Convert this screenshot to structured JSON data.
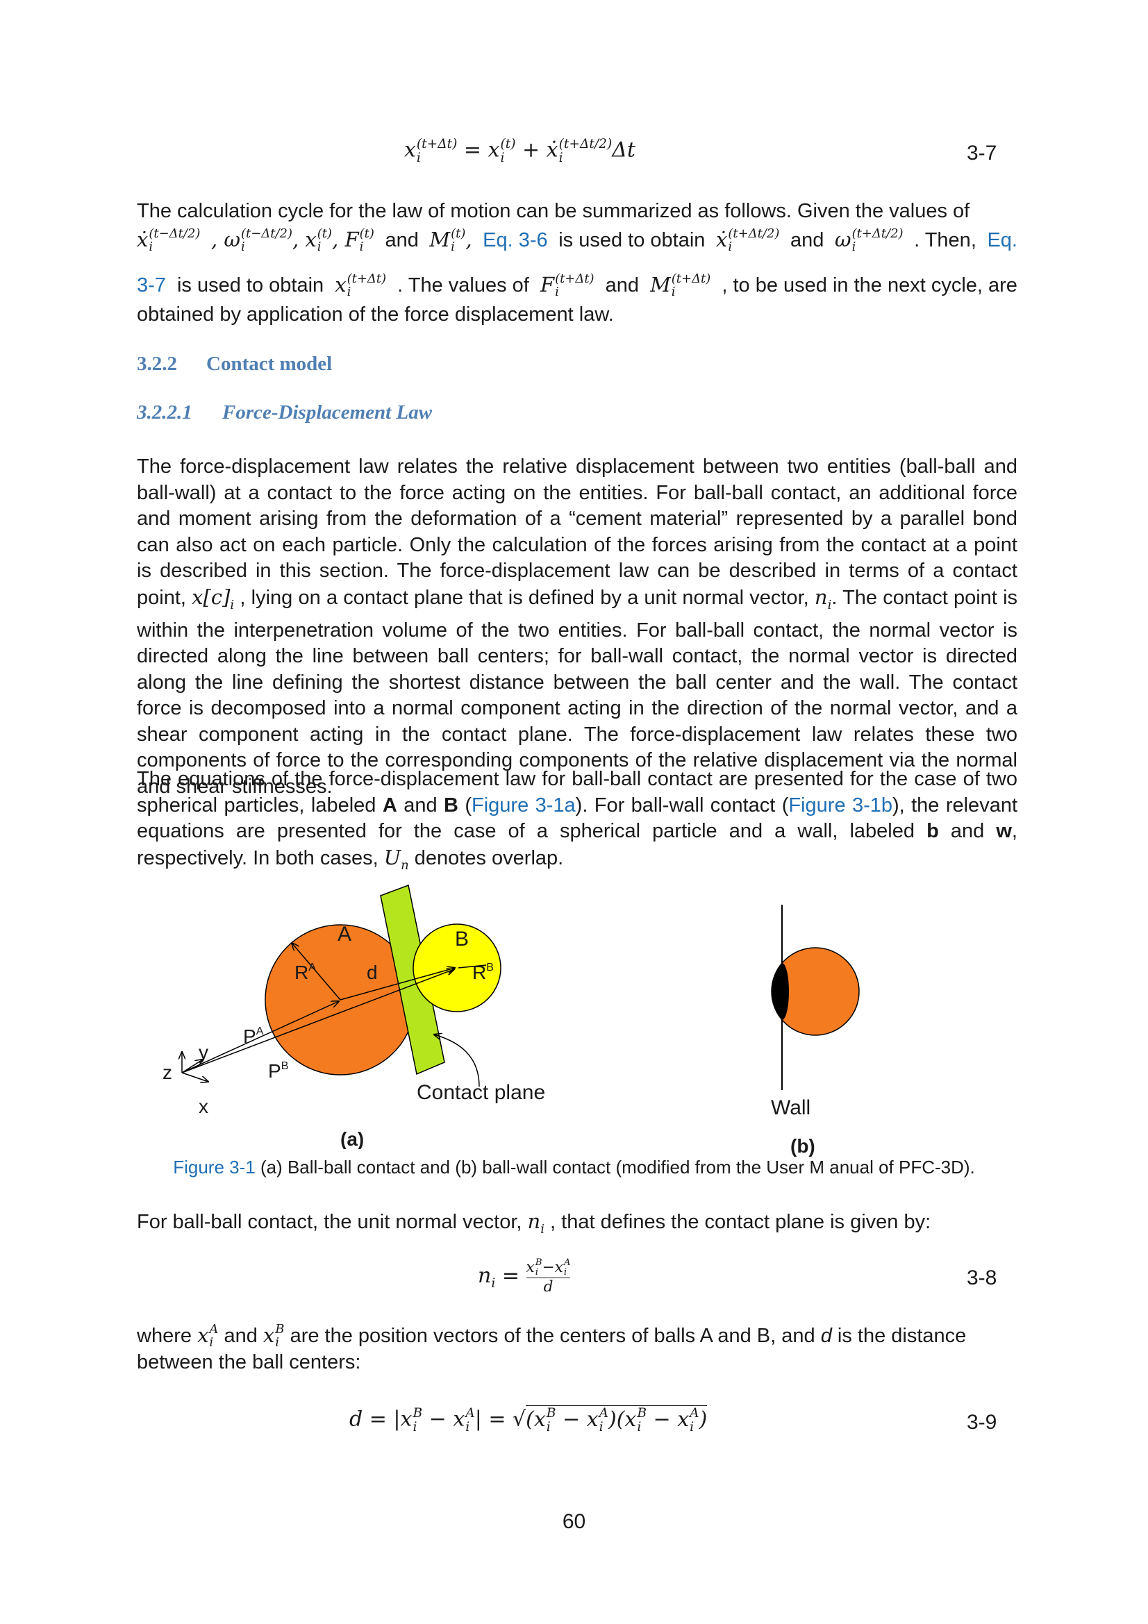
{
  "equations": {
    "eq37_number": "3-7",
    "eq38_number": "3-8",
    "eq39_number": "3-9"
  },
  "paragraph1": {
    "line1": "The calculation cycle for the law of motion can be summarized as follows. Given the values of",
    "and1": "and",
    "ref_eq36": "Eq. 3-6",
    "is_used_obtain": "is used to obtain",
    "and2": "and",
    "then": ". Then,",
    "ref_eq37_a": "Eq.",
    "ref_eq37_b": "3-7",
    "is_used_obtain2": "is used to obtain",
    "values_of": ". The values of",
    "and3": "and",
    "next_cycle": ", to be used in the next cycle, are",
    "line4": "obtained by application of the force displacement law."
  },
  "headings": {
    "h322_num": "3.2.2",
    "h322_text": "Contact model",
    "h3221_num": "3.2.2.1",
    "h3221_text": "Force-Displacement Law"
  },
  "paragraph2": {
    "part1": "The force-displacement law relates the relative displacement between two entities (ball-ball and ball-wall) at a contact to the force acting on the entities. For ball-ball contact, an additional force and moment arising from the deformation of a “cement material” represented by a parallel bond can also act on each particle. Only the calculation of the forces arising from the contact at a point is described in this section. The force-displacement law can be described in terms of a contact point,",
    "part2": ", lying on a contact plane that is defined by a unit normal vector,",
    "part3": ". The contact point is within the interpenetration volume of the two entities. For ball-ball contact, the normal vector is directed along the line between ball centers; for ball-wall contact, the normal vector is directed along the line defining the shortest distance between the ball center and the wall. The contact force is decomposed into a normal component acting in the direction of the normal vector, and a shear component acting in the contact plane. The force-displacement law relates these two components of force to the corresponding components of the relative displacement via the normal and shear stiffnesses."
  },
  "paragraph3": {
    "part1": "The equations of the force-displacement law for ball-ball contact are presented for the case of two spherical particles, labeled",
    "A": "A",
    "and": "and",
    "B": "B",
    "paren_open": "(",
    "ref_fig_a": "Figure 3-1a",
    "part2": "). For ball-wall contact (",
    "ref_fig_b": "Figure 3-1b",
    "part3": "), the relevant equations are presented for the case of a spherical particle and a wall, labeled",
    "b": "b",
    "and2": "and",
    "w": "w",
    "part4": ", respectively. In both cases,",
    "part5": "denotes overlap."
  },
  "figure": {
    "label_A": "A",
    "label_B": "B",
    "label_RA": "R",
    "label_RA_sup": "A",
    "label_RB": "R",
    "label_RB_sup": "B",
    "label_d": "d",
    "label_PA": "P",
    "label_PA_sup": "A",
    "label_PB": "P",
    "label_PB_sup": "B",
    "label_z": "z",
    "label_y": "y",
    "label_x": "x",
    "label_contact_plane": "Contact plane",
    "label_wall": "Wall",
    "sub_a": "(a)",
    "sub_b": "(b)",
    "colors": {
      "ball_orange": "#f47b20",
      "ball_yellow": "#ffff00",
      "plane_green": "#b5e61d"
    }
  },
  "caption": {
    "ref": "Figure 3-1",
    "text": " (a) Ball-ball contact and (b) ball-wall contact (modified from the User M anual of PFC-3D)."
  },
  "paragraph4": {
    "part1": "For ball-ball contact, the unit normal vector,",
    "part2": ", that defines the contact plane is given by:"
  },
  "paragraph5": {
    "part1": "where",
    "and": "and",
    "part2": "are the position vectors of the centers of balls A and B, and",
    "d": "d",
    "part3": "is the distance between the ball centers:"
  },
  "page_number": "60"
}
